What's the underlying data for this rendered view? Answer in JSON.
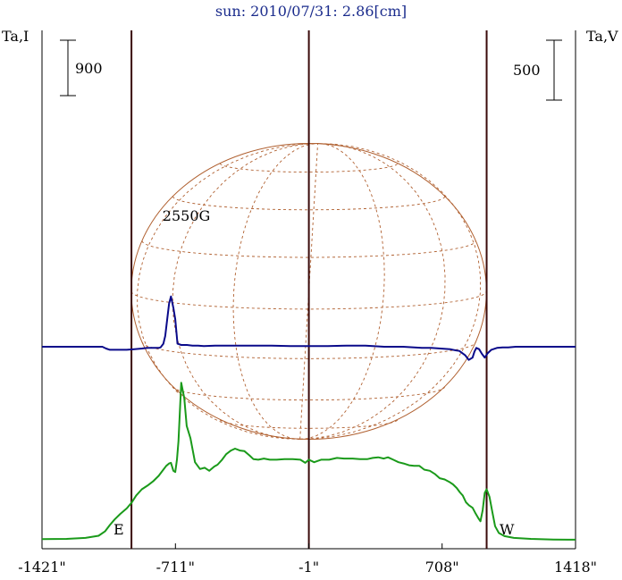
{
  "chart_data": {
    "type": "line",
    "title": "sun: 2010/07/31: 2.86[cm]",
    "left_axis_label": "Ta,I",
    "right_axis_label": "Ta,V",
    "left_scale_bar": {
      "label": "900",
      "value": 900
    },
    "right_scale_bar": {
      "label": "500",
      "value": 500
    },
    "xlim": [
      -1421,
      1418
    ],
    "x_ticks": [
      {
        "value": -1421,
        "label": "-1421\""
      },
      {
        "value": -711,
        "label": "-711\""
      },
      {
        "value": -1,
        "label": "-1\""
      },
      {
        "value": 708,
        "label": "708\""
      },
      {
        "value": 1418,
        "label": "1418\""
      }
    ],
    "vertical_lines": [
      -945,
      -1,
      945
    ],
    "limb_labels": {
      "east": "E",
      "west": "W"
    },
    "annotations": [
      {
        "text": "2550G",
        "x": -775
      }
    ],
    "solar_disk": {
      "center_x": -1,
      "radius_arcsec": 945,
      "color": "#b06030"
    },
    "colors": {
      "series_i": "#1a9a1a",
      "series_v": "#0a0a8a",
      "disk": "#b06030",
      "frame": "#000000"
    },
    "series": [
      {
        "name": "Ta,I",
        "color": "#1a9a1a",
        "x": [
          -1421,
          -1290,
          -1190,
          -1120,
          -1085,
          -1060,
          -1035,
          -1005,
          -970,
          -945,
          -920,
          -890,
          -860,
          -830,
          -800,
          -775,
          -760,
          -745,
          -735,
          -722,
          -712,
          -703,
          -695,
          -680,
          -664,
          -651,
          -631,
          -607,
          -580,
          -555,
          -531,
          -504,
          -487,
          -463,
          -441,
          -415,
          -394,
          -368,
          -344,
          -317,
          -296,
          -270,
          -240,
          -209,
          -172,
          -131,
          -87,
          -46,
          -20,
          -1,
          27,
          64,
          107,
          149,
          186,
          232,
          271,
          309,
          339,
          368,
          398,
          420,
          448,
          476,
          503,
          532,
          559,
          587,
          613,
          643,
          669,
          695,
          722,
          746,
          766,
          786,
          803,
          818,
          835,
          851,
          870,
          884,
          901,
          912,
          924,
          935,
          945,
          960,
          975,
          990,
          1010,
          1040,
          1090,
          1180,
          1300,
          1418
        ],
        "y": [
          10,
          15,
          30,
          65,
          140,
          240,
          330,
          420,
          510,
          600,
          720,
          820,
          880,
          950,
          1040,
          1140,
          1200,
          1240,
          1250,
          1120,
          1100,
          1300,
          1600,
          2550,
          2300,
          1850,
          1650,
          1260,
          1150,
          1170,
          1120,
          1190,
          1220,
          1300,
          1390,
          1450,
          1480,
          1450,
          1440,
          1370,
          1310,
          1300,
          1320,
          1300,
          1300,
          1310,
          1310,
          1300,
          1250,
          1300,
          1260,
          1300,
          1300,
          1330,
          1320,
          1320,
          1310,
          1310,
          1330,
          1340,
          1320,
          1340,
          1300,
          1260,
          1240,
          1210,
          1200,
          1200,
          1140,
          1120,
          1070,
          1000,
          980,
          940,
          900,
          840,
          770,
          720,
          610,
          560,
          520,
          440,
          350,
          300,
          480,
          760,
          820,
          700,
          460,
          220,
          110,
          60,
          30,
          15,
          5,
          2
        ],
        "y_scale": {
          "label": "900",
          "value": 900
        }
      },
      {
        "name": "Ta,V",
        "color": "#0a0a8a",
        "x": [
          -1421,
          -1100,
          -1080,
          -1060,
          -1030,
          -1000,
          -970,
          -930,
          -890,
          -860,
          -840,
          -815,
          -800,
          -790,
          -775,
          -765,
          -755,
          -745,
          -735,
          -722,
          -712,
          -700,
          -680,
          -650,
          -620,
          -590,
          -560,
          -500,
          -400,
          -300,
          -200,
          -100,
          -1,
          100,
          200,
          300,
          400,
          500,
          600,
          650,
          700,
          750,
          780,
          800,
          830,
          850,
          870,
          880,
          890,
          905,
          920,
          935,
          950,
          970,
          1000,
          1030,
          1060,
          1100,
          1418
        ],
        "y": [
          0,
          0,
          -15,
          -25,
          -25,
          -25,
          -25,
          -20,
          -15,
          -10,
          -10,
          -10,
          -10,
          -5,
          25,
          90,
          230,
          360,
          420,
          325,
          230,
          25,
          15,
          15,
          10,
          10,
          5,
          10,
          10,
          10,
          10,
          5,
          5,
          5,
          10,
          10,
          0,
          0,
          -10,
          -10,
          -15,
          -20,
          -30,
          -35,
          -70,
          -110,
          -90,
          -40,
          -10,
          -20,
          -60,
          -90,
          -55,
          -25,
          -10,
          -5,
          -5,
          0,
          0
        ],
        "y_scale": {
          "label": "500",
          "value": 500
        }
      }
    ]
  }
}
